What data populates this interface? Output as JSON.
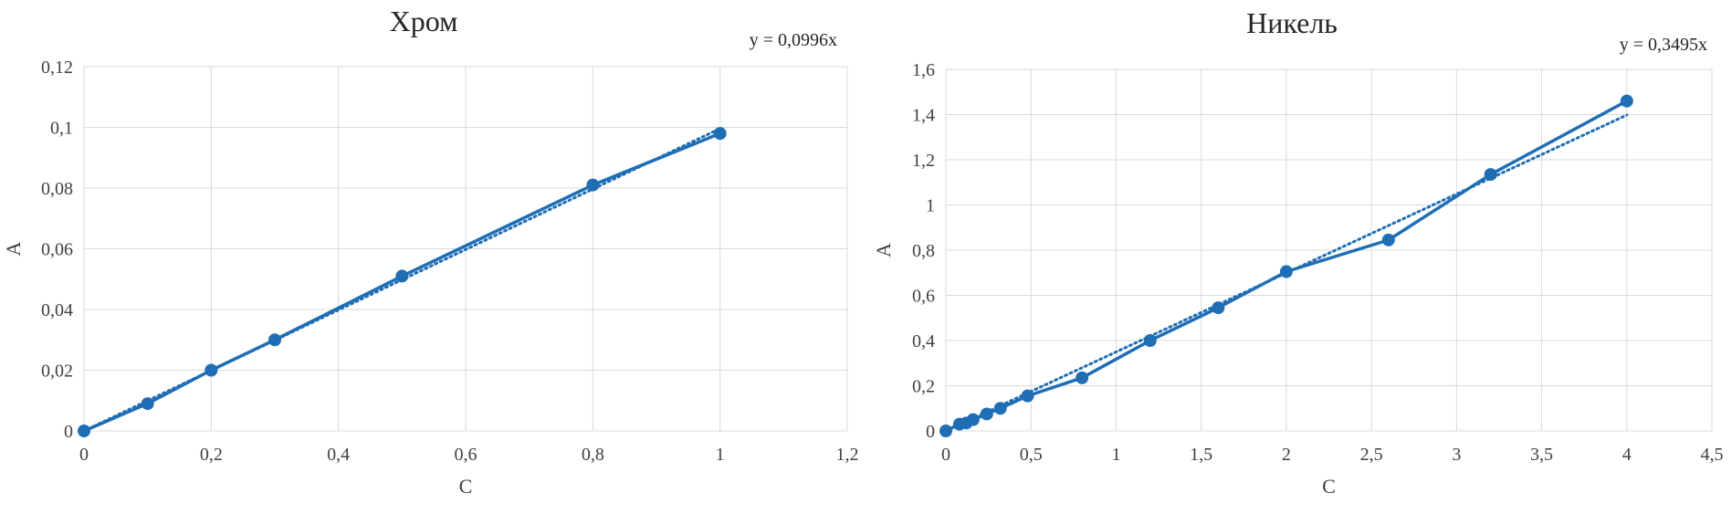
{
  "chart_data": [
    {
      "type": "scatter",
      "title": "Хром",
      "xlabel": "C",
      "ylabel": "A",
      "xlim": [
        0,
        1.2
      ],
      "ylim": [
        0,
        0.12
      ],
      "x_ticks": [
        0,
        0.2,
        0.4,
        0.6,
        0.8,
        1,
        1.2
      ],
      "x_tick_labels": [
        "0",
        "0,2",
        "0,4",
        "0,6",
        "0,8",
        "1",
        "1,2"
      ],
      "y_ticks": [
        0,
        0.02,
        0.04,
        0.06,
        0.08,
        0.1,
        0.12
      ],
      "y_tick_labels": [
        "0",
        "0,02",
        "0,04",
        "0,06",
        "0,08",
        "0,1",
        "0,12"
      ],
      "grid": true,
      "legend": "none",
      "series": [
        {
          "x": [
            0,
            0.1,
            0.2,
            0.3,
            0.5,
            0.8,
            1.0
          ],
          "y": [
            0,
            0.009,
            0.02,
            0.03,
            0.051,
            0.081,
            0.098
          ],
          "color": "#1f6eb5",
          "style": "line-markers"
        }
      ],
      "trendline": {
        "slope": 0.0996,
        "x_range": [
          0,
          1.0
        ],
        "color": "#1f6eb5",
        "style": "dotted"
      },
      "equation": "y = 0,0996x"
    },
    {
      "type": "scatter",
      "title": "Никель",
      "xlabel": "C",
      "ylabel": "A",
      "xlim": [
        0,
        4.5
      ],
      "ylim": [
        0,
        1.6
      ],
      "x_ticks": [
        0,
        0.5,
        1,
        1.5,
        2,
        2.5,
        3,
        3.5,
        4,
        4.5
      ],
      "x_tick_labels": [
        "0",
        "0,5",
        "1",
        "1,5",
        "2",
        "2,5",
        "3",
        "3,5",
        "4",
        "4,5"
      ],
      "y_ticks": [
        0,
        0.2,
        0.4,
        0.6,
        0.8,
        1,
        1.2,
        1.4,
        1.6
      ],
      "y_tick_labels": [
        "0",
        "0,2",
        "0,4",
        "0,6",
        "0,8",
        "1",
        "1,2",
        "1,4",
        "1,6"
      ],
      "grid": true,
      "legend": "none",
      "series": [
        {
          "x": [
            0,
            0.08,
            0.12,
            0.16,
            0.24,
            0.32,
            0.48,
            0.8,
            1.2,
            1.6,
            2.0,
            2.6,
            3.2,
            4.0
          ],
          "y": [
            0,
            0.03,
            0.035,
            0.05,
            0.075,
            0.1,
            0.155,
            0.235,
            0.4,
            0.545,
            0.705,
            0.845,
            1.135,
            1.46
          ],
          "color": "#1f6eb5",
          "style": "line-markers"
        }
      ],
      "trendline": {
        "slope": 0.3495,
        "x_range": [
          0,
          4.0
        ],
        "color": "#1f6eb5",
        "style": "dotted"
      },
      "equation": "y = 0,3495x"
    }
  ]
}
